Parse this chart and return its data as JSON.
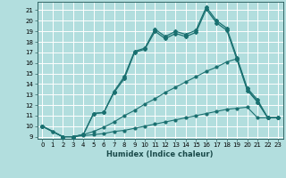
{
  "title": "",
  "xlabel": "Humidex (Indice chaleur)",
  "background_color": "#b2dede",
  "grid_color": "#ffffff",
  "line_color": "#1a7070",
  "xlim": [
    -0.5,
    23.5
  ],
  "ylim": [
    8.8,
    21.8
  ],
  "yticks": [
    9,
    10,
    11,
    12,
    13,
    14,
    15,
    16,
    17,
    18,
    19,
    20,
    21
  ],
  "xticks": [
    0,
    1,
    2,
    3,
    4,
    5,
    6,
    7,
    8,
    9,
    10,
    11,
    12,
    13,
    14,
    15,
    16,
    17,
    18,
    19,
    20,
    21,
    22,
    23
  ],
  "series1_x": [
    0,
    1,
    2,
    3,
    4,
    5,
    6,
    7,
    8,
    9,
    10,
    11,
    12,
    13,
    14,
    15,
    16,
    17,
    18,
    19,
    20,
    21,
    22,
    23
  ],
  "series1_y": [
    10,
    9.5,
    9.0,
    9.0,
    9.1,
    9.2,
    9.3,
    9.5,
    9.6,
    9.8,
    10.0,
    10.2,
    10.4,
    10.6,
    10.8,
    11.0,
    11.2,
    11.4,
    11.6,
    11.7,
    11.8,
    10.8,
    10.8,
    10.8
  ],
  "series2_x": [
    0,
    1,
    2,
    3,
    4,
    5,
    6,
    7,
    8,
    9,
    10,
    11,
    12,
    13,
    14,
    15,
    16,
    17,
    18,
    19,
    20,
    21,
    22,
    23
  ],
  "series2_y": [
    10,
    9.5,
    9.0,
    9.0,
    9.2,
    9.5,
    9.9,
    10.4,
    11.0,
    11.5,
    12.1,
    12.6,
    13.2,
    13.7,
    14.2,
    14.7,
    15.2,
    15.6,
    16.1,
    16.4,
    13.5,
    12.3,
    10.8,
    10.8
  ],
  "series3_x": [
    0,
    2,
    3,
    4,
    5,
    6,
    7,
    8,
    9,
    10,
    11,
    12,
    13,
    14,
    15,
    16,
    17,
    18,
    19,
    20,
    21,
    22,
    23
  ],
  "series3_y": [
    10,
    9.0,
    9.0,
    9.2,
    11.2,
    11.3,
    13.3,
    14.7,
    17.1,
    17.4,
    19.2,
    18.5,
    19.0,
    18.7,
    19.1,
    21.3,
    20.0,
    19.3,
    16.5,
    13.6,
    12.5,
    10.8,
    10.8
  ],
  "series4_x": [
    0,
    2,
    3,
    4,
    5,
    6,
    7,
    8,
    9,
    10,
    11,
    12,
    13,
    14,
    15,
    16,
    17,
    18,
    19,
    20,
    21,
    22,
    23
  ],
  "series4_y": [
    10,
    9.0,
    9.0,
    9.2,
    11.2,
    11.3,
    13.2,
    14.5,
    17.0,
    17.3,
    19.0,
    18.3,
    18.8,
    18.5,
    18.9,
    21.1,
    19.8,
    19.1,
    16.3,
    13.4,
    12.3,
    10.8,
    10.8
  ],
  "tick_fontsize": 5.0,
  "xlabel_fontsize": 6.0
}
